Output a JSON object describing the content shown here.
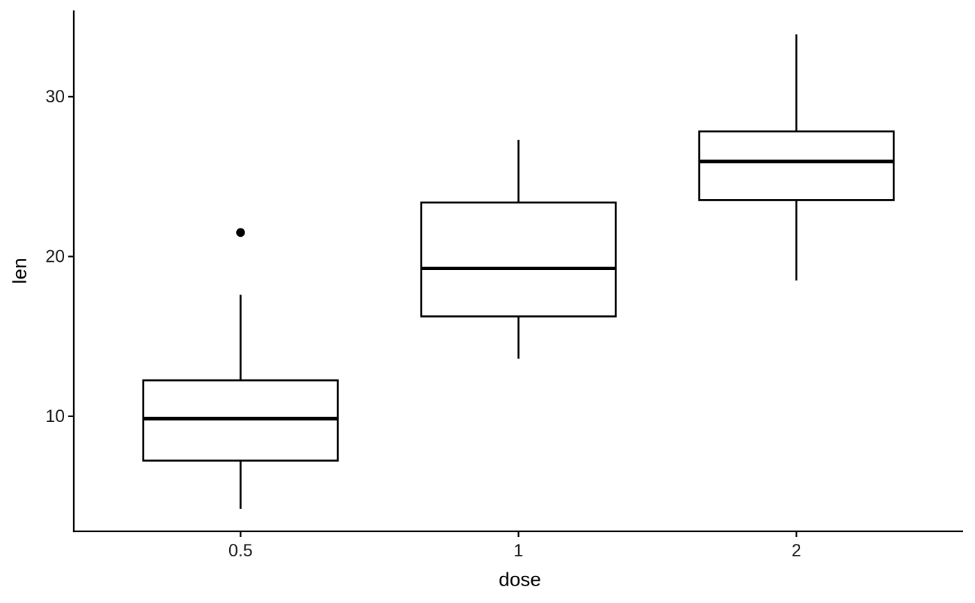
{
  "figure": {
    "background": "#ffffff"
  },
  "chart_data": {
    "type": "boxplot",
    "title": "",
    "xlabel": "dose",
    "ylabel": "len",
    "categories": [
      "0.5",
      "1",
      "2"
    ],
    "y_ticks": [
      10,
      20,
      30
    ],
    "ylim": [
      2.8,
      35.4
    ],
    "grid": false,
    "legend": false,
    "boxes": [
      {
        "category": "0.5",
        "whisker_low": 4.2,
        "q1": 7.225,
        "median": 9.85,
        "q3": 12.25,
        "whisker_high": 17.6,
        "outliers": [
          21.5
        ]
      },
      {
        "category": "1",
        "whisker_low": 13.6,
        "q1": 16.25,
        "median": 19.25,
        "q3": 23.375,
        "whisker_high": 27.3,
        "outliers": []
      },
      {
        "category": "2",
        "whisker_low": 18.5,
        "q1": 23.525,
        "median": 25.95,
        "q3": 27.825,
        "whisker_high": 33.9,
        "outliers": []
      }
    ],
    "colors": {
      "stroke": "#000000",
      "box_fill": "#ffffff",
      "axis_line": "#000000",
      "tick_text": "#1a1a1a",
      "axis_title_text": "#000000",
      "background": "#ffffff"
    }
  }
}
